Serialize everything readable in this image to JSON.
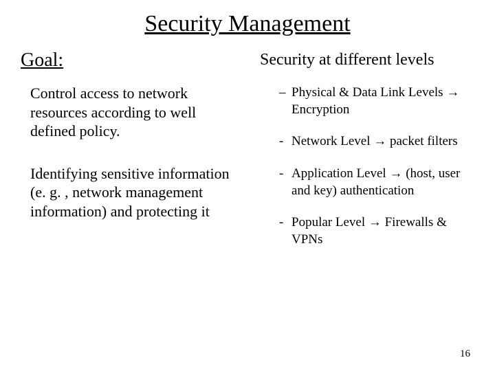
{
  "title": "Security Management",
  "left": {
    "goal_label": "Goal:",
    "para1": "Control access to network resources according to well defined policy.",
    "para2": "Identifying sensitive information (e. g. , network management information) and protecting it"
  },
  "right": {
    "subhead": "Security at different levels",
    "items": [
      {
        "pre": "Physical & Data Link Levels ",
        "post": " Encryption"
      },
      {
        "pre": "Network Level ",
        "post": " packet filters"
      },
      {
        "pre": "Application Level ",
        "post": " (host, user and key) authentication"
      },
      {
        "pre": "Popular Level ",
        "post": " Firewalls & VPNs"
      }
    ]
  },
  "arrow_glyph": "→",
  "page_number": "16",
  "colors": {
    "text": "#000000",
    "background": "#ffffff"
  }
}
